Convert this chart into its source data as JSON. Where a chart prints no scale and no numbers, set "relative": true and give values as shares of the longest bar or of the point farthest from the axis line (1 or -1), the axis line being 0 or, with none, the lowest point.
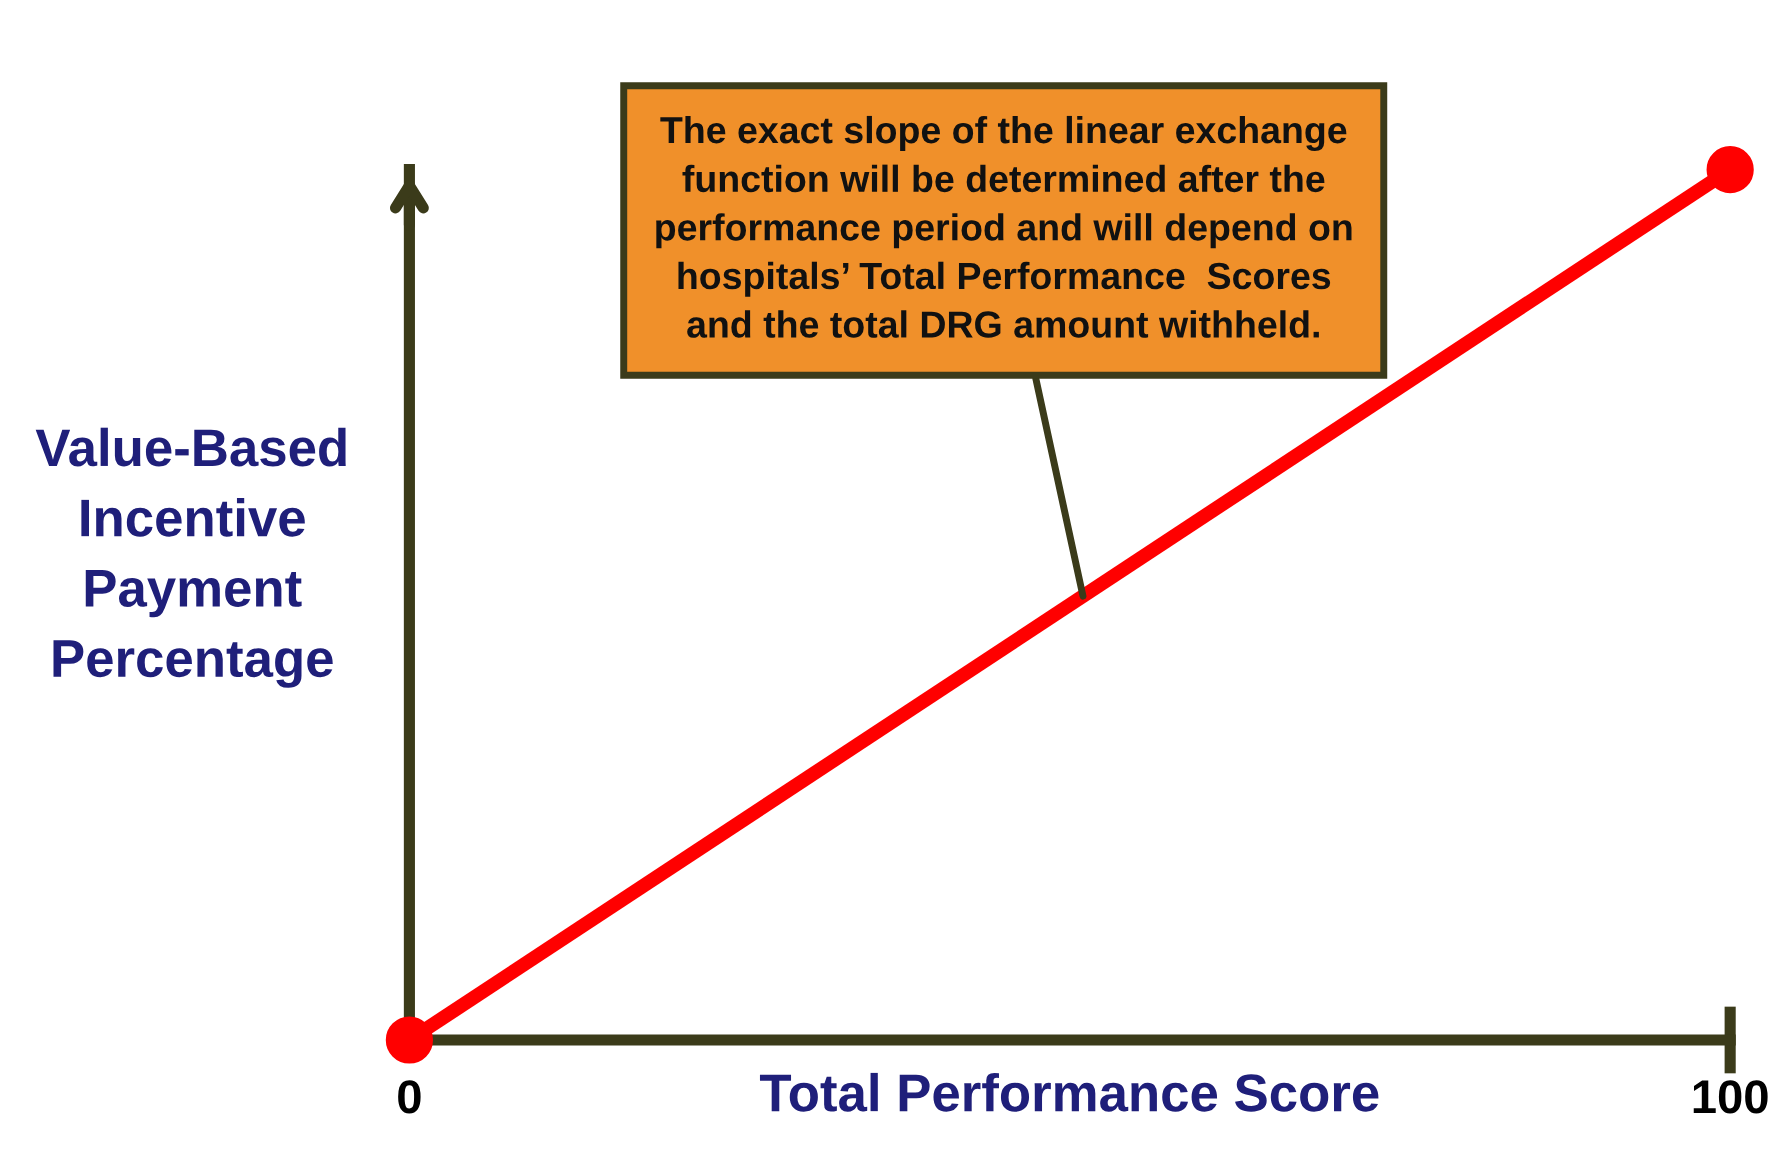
{
  "chart_data": {
    "type": "line",
    "xlabel": "Total Performance Score",
    "ylabel": "Value-Based\nIncentive\nPayment\nPercentage",
    "x": [
      0,
      100
    ],
    "relative": true,
    "xlim": [
      0,
      100
    ],
    "xticks": [
      0,
      100
    ],
    "tick_labels": "x",
    "marker": "circle",
    "line_style": "solid",
    "grid": false,
    "legend": false,
    "series": [
      {
        "color": "#ff0000",
        "values": [
          0,
          1
        ]
      }
    ],
    "annotations": [
      {
        "text": "The exact slope of the linear exchange\nfunction will be determined after the\nperformance period and will depend on\nhospitals’ Total Performance  Scores\nand the total DRG amount withheld.",
        "x": 51,
        "y": 0.51
      }
    ]
  }
}
